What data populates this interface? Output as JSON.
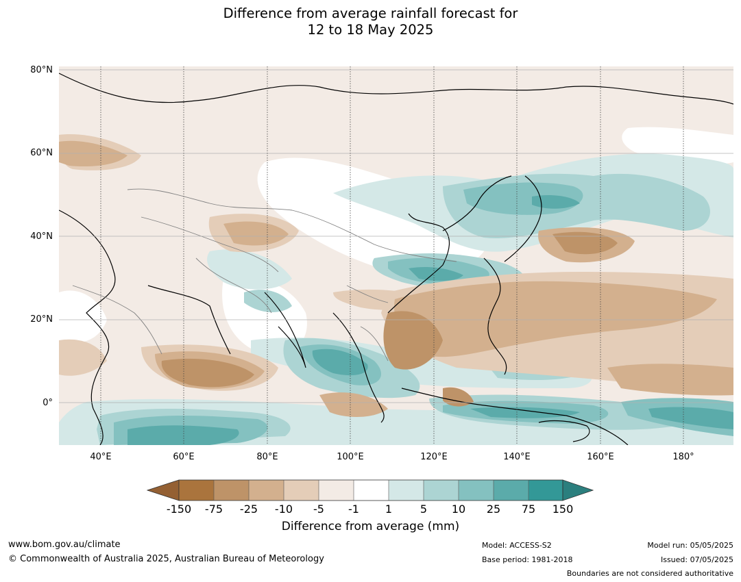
{
  "title": {
    "line1": "Difference from average rainfall forecast for",
    "line2": "12 to 18 May 2025"
  },
  "map": {
    "lat_labels": [
      "80°N",
      "60°N",
      "40°N",
      "20°N",
      "0°"
    ],
    "lon_labels": [
      "40°E",
      "60°E",
      "80°E",
      "100°E",
      "120°E",
      "140°E",
      "160°E",
      "180°"
    ],
    "lon_range": [
      30,
      192
    ],
    "lat_range": [
      -10,
      81
    ]
  },
  "colorbar": {
    "title": "Difference from average (mm)",
    "ticks": [
      "-150",
      "-75",
      "-25",
      "-10",
      "-5",
      "-1",
      "1",
      "5",
      "10",
      "25",
      "75",
      "150"
    ],
    "colors": {
      "lt_-150": "#946033",
      "-150_-75": "#aa743d",
      "-75_-25": "#be9368",
      "-25_-10": "#d3b08e",
      "-10_-5": "#e4cdb8",
      "-5_-1": "#f3ebe5",
      "-1_1": "#ffffff",
      "1_5": "#d4e8e7",
      "5_10": "#acd4d3",
      "10_25": "#84c1c0",
      "25_75": "#5babaa",
      "75_150": "#339897",
      "gt_150": "#2b7f7e"
    }
  },
  "footer": {
    "website": "www.bom.gov.au/climate",
    "copyright": "© Commonwealth of Australia 2025, Australian Bureau of Meteorology",
    "model": "Model: ACCESS-S2",
    "base_period": "Base period: 1981-2018",
    "model_run": "Model run: 05/05/2025",
    "issued": "Issued: 07/05/2025",
    "boundaries_note": "Boundaries are not considered authoritative"
  }
}
